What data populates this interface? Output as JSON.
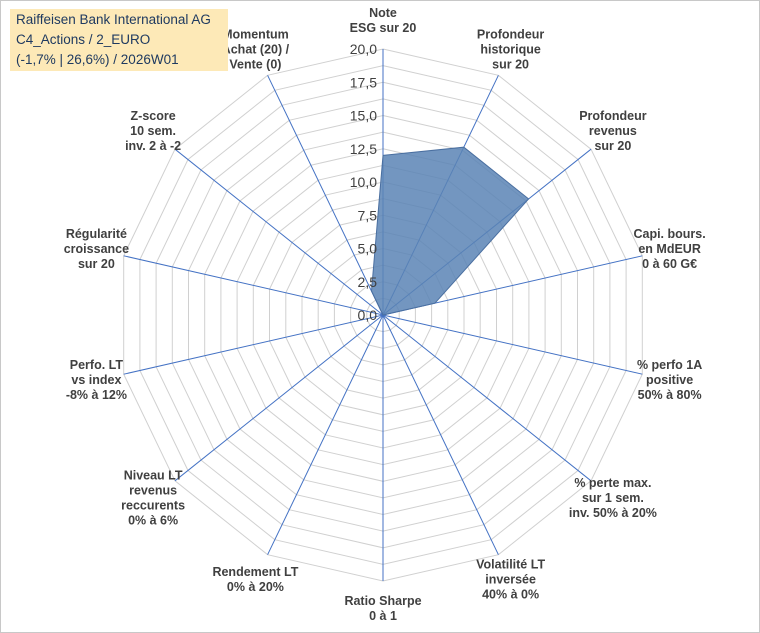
{
  "header": {
    "title": "Raiffeisen Bank International AG",
    "subtitle": "C4_Actions / 2_EURO",
    "info": "(-1,7% | 26,6%) / 2026W01"
  },
  "chart_data": {
    "type": "radar",
    "title": "Raiffeisen Bank International AG",
    "range": [
      0,
      20
    ],
    "ticks": [
      "0,0",
      "2,5",
      "5,0",
      "7,5",
      "10,0",
      "12,5",
      "15,0",
      "17,5",
      "20,0"
    ],
    "tick_values": [
      0,
      2.5,
      5,
      7.5,
      10,
      12.5,
      15,
      17.5,
      20
    ],
    "axes": [
      {
        "lines": [
          "Note",
          "ESG sur 20"
        ],
        "value": 12
      },
      {
        "lines": [
          "Profondeur",
          "historique",
          "sur 20"
        ],
        "value": 14
      },
      {
        "lines": [
          "Profondeur",
          "revenus",
          "sur 20"
        ],
        "value": 14
      },
      {
        "lines": [
          "Capi. bours.",
          "en MdEUR",
          "0 à 60 G€"
        ],
        "value": 4
      },
      {
        "lines": [
          "% perfo 1A",
          "positive",
          "50% à 80%"
        ],
        "value": 0
      },
      {
        "lines": [
          "% perte max.",
          "sur 1 sem.",
          "inv. 50% à 20%"
        ],
        "value": 0
      },
      {
        "lines": [
          "Volatilité LT",
          "inversée",
          "40% à 0%"
        ],
        "value": 0
      },
      {
        "lines": [
          "Ratio Sharpe",
          "0 à 1"
        ],
        "value": 0
      },
      {
        "lines": [
          "Rendement LT",
          "0% à 20%"
        ],
        "value": 0
      },
      {
        "lines": [
          "Niveau LT",
          "revenus",
          "reccurents",
          "0% à 6%"
        ],
        "value": 0
      },
      {
        "lines": [
          "Perfo. LT",
          "vs index",
          "-8% à 12%"
        ],
        "value": 0
      },
      {
        "lines": [
          "Régularité",
          "croissance",
          "sur 20"
        ],
        "value": 0
      },
      {
        "lines": [
          "Z-score",
          "10 sem.",
          "inv. 2 à -2"
        ],
        "value": 0
      },
      {
        "lines": [
          "Momentum",
          "Achat (20) /",
          "Vente (0)"
        ],
        "value": 2
      }
    ],
    "grid": true,
    "colors": {
      "fill": "#5b84b5",
      "stroke": "#4a6fa0",
      "axis": "#4472c4",
      "grid": "#d0d0d0"
    }
  }
}
